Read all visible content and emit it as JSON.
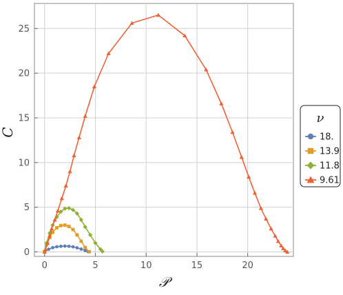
{
  "chart_data": {
    "type": "line",
    "xlabel": "𝒫",
    "ylabel": "C",
    "xlim": [
      -1,
      24.5
    ],
    "ylim": [
      -0.5,
      27.8
    ],
    "xticks": [
      0,
      5,
      10,
      15,
      20
    ],
    "yticks": [
      0,
      5,
      10,
      15,
      20,
      25
    ],
    "grid": true,
    "legend": {
      "title": "ν",
      "placement": "right"
    },
    "series": [
      {
        "name": "18.",
        "color": "#5e81b5",
        "marker": "circle",
        "x": [
          0.0,
          0.4,
          0.8,
          1.2,
          1.6,
          2.0,
          2.4,
          2.8,
          3.2,
          3.6,
          4.0,
          4.3
        ],
        "y": [
          0.02,
          0.3,
          0.48,
          0.58,
          0.63,
          0.65,
          0.63,
          0.57,
          0.46,
          0.32,
          0.15,
          0.02
        ]
      },
      {
        "name": "13.9",
        "color": "#e19c24",
        "marker": "square",
        "x": [
          0.0,
          0.2,
          0.5,
          0.8,
          1.2,
          1.6,
          2.0,
          2.4,
          2.8,
          3.2,
          3.6,
          4.0,
          4.4
        ],
        "y": [
          0.05,
          0.8,
          1.6,
          2.2,
          2.7,
          2.95,
          3.0,
          2.85,
          2.5,
          1.9,
          1.2,
          0.5,
          0.02
        ]
      },
      {
        "name": "11.8",
        "color": "#8fb032",
        "marker": "diamond",
        "x": [
          0.0,
          0.2,
          0.5,
          0.8,
          1.2,
          1.6,
          2.0,
          2.4,
          2.8,
          3.2,
          3.6,
          4.0,
          4.5,
          5.0,
          5.5,
          5.7
        ],
        "y": [
          0.05,
          1.0,
          2.1,
          3.0,
          3.9,
          4.5,
          4.85,
          4.9,
          4.7,
          4.3,
          3.6,
          2.8,
          1.9,
          1.0,
          0.3,
          0.05
        ]
      },
      {
        "name": "9.61",
        "color": "#eb6235",
        "marker": "triangle",
        "x": [
          0.0,
          0.1,
          0.3,
          0.5,
          0.7,
          1.0,
          1.3,
          1.7,
          2.1,
          2.5,
          2.9,
          3.4,
          4.0,
          4.9,
          6.3,
          8.6,
          11.2,
          13.8,
          15.9,
          17.4,
          18.5,
          19.4,
          20.1,
          20.7,
          21.3,
          21.8,
          22.3,
          22.7,
          23.0,
          23.3,
          23.5,
          23.7,
          23.9
        ],
        "y": [
          0.0,
          0.3,
          1.0,
          1.8,
          2.6,
          3.6,
          4.6,
          6.0,
          7.4,
          9.0,
          10.8,
          12.8,
          15.2,
          18.5,
          22.2,
          25.6,
          26.5,
          24.2,
          20.4,
          16.6,
          13.4,
          10.6,
          8.4,
          6.6,
          4.9,
          3.7,
          2.6,
          1.8,
          1.2,
          0.7,
          0.4,
          0.15,
          0.0
        ]
      }
    ]
  }
}
